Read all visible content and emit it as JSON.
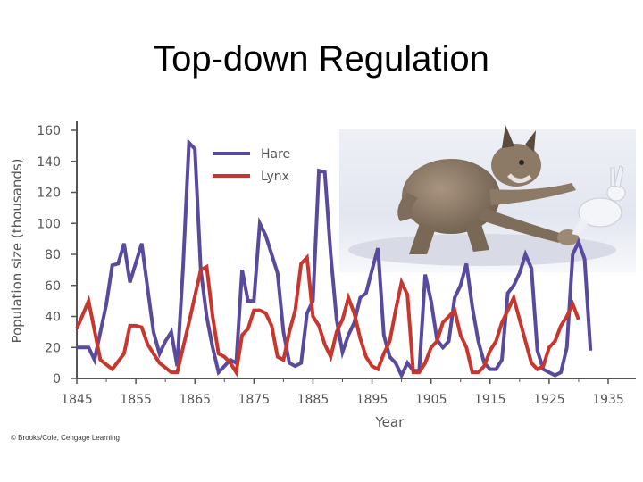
{
  "slide": {
    "title": "Top-down Regulation",
    "credit": "© Brooks/Cole, Cengage Learning"
  },
  "illustration": {
    "subject": "lynx chasing a snowshoe hare in snow"
  },
  "chart_data": {
    "type": "line",
    "xlabel": "Year",
    "ylabel": "Population size (thousands)",
    "xlim": [
      1845,
      1935
    ],
    "ylim": [
      0,
      160
    ],
    "x_ticks": [
      1845,
      1855,
      1865,
      1875,
      1885,
      1895,
      1905,
      1915,
      1925,
      1935
    ],
    "y_ticks": [
      0,
      20,
      40,
      60,
      80,
      100,
      120,
      140,
      160
    ],
    "legend_position": "top-center",
    "series": [
      {
        "name": "Hare",
        "color": "#5a4a9e",
        "points": [
          [
            1845,
            20
          ],
          [
            1847,
            20
          ],
          [
            1848,
            12
          ],
          [
            1850,
            48
          ],
          [
            1851,
            73
          ],
          [
            1852,
            74
          ],
          [
            1853,
            87
          ],
          [
            1854,
            62
          ],
          [
            1856,
            87
          ],
          [
            1857,
            58
          ],
          [
            1858,
            30
          ],
          [
            1859,
            16
          ],
          [
            1860,
            24
          ],
          [
            1861,
            30
          ],
          [
            1862,
            8
          ],
          [
            1863,
            72
          ],
          [
            1864,
            152
          ],
          [
            1865,
            148
          ],
          [
            1866,
            70
          ],
          [
            1867,
            40
          ],
          [
            1868,
            20
          ],
          [
            1869,
            4
          ],
          [
            1870,
            8
          ],
          [
            1871,
            12
          ],
          [
            1872,
            10
          ],
          [
            1873,
            70
          ],
          [
            1874,
            50
          ],
          [
            1875,
            50
          ],
          [
            1876,
            100
          ],
          [
            1877,
            92
          ],
          [
            1878,
            80
          ],
          [
            1879,
            68
          ],
          [
            1880,
            30
          ],
          [
            1881,
            10
          ],
          [
            1882,
            8
          ],
          [
            1883,
            10
          ],
          [
            1884,
            42
          ],
          [
            1885,
            50
          ],
          [
            1886,
            134
          ],
          [
            1887,
            133
          ],
          [
            1888,
            80
          ],
          [
            1889,
            38
          ],
          [
            1890,
            17
          ],
          [
            1891,
            28
          ],
          [
            1892,
            36
          ],
          [
            1893,
            52
          ],
          [
            1894,
            55
          ],
          [
            1895,
            70
          ],
          [
            1896,
            84
          ],
          [
            1897,
            28
          ],
          [
            1898,
            14
          ],
          [
            1899,
            10
          ],
          [
            1900,
            2
          ],
          [
            1901,
            10
          ],
          [
            1902,
            5
          ],
          [
            1903,
            5
          ],
          [
            1904,
            67
          ],
          [
            1905,
            50
          ],
          [
            1906,
            25
          ],
          [
            1907,
            20
          ],
          [
            1908,
            24
          ],
          [
            1909,
            52
          ],
          [
            1910,
            60
          ],
          [
            1911,
            74
          ],
          [
            1912,
            46
          ],
          [
            1913,
            24
          ],
          [
            1914,
            10
          ],
          [
            1915,
            6
          ],
          [
            1916,
            6
          ],
          [
            1917,
            12
          ],
          [
            1918,
            55
          ],
          [
            1919,
            60
          ],
          [
            1920,
            68
          ],
          [
            1921,
            80
          ],
          [
            1922,
            71
          ],
          [
            1923,
            18
          ],
          [
            1924,
            6
          ],
          [
            1925,
            4
          ],
          [
            1926,
            2
          ],
          [
            1927,
            4
          ],
          [
            1928,
            20
          ],
          [
            1929,
            80
          ],
          [
            1930,
            88
          ],
          [
            1931,
            77
          ],
          [
            1932,
            18
          ]
        ]
      },
      {
        "name": "Lynx",
        "color": "#c8362e",
        "points": [
          [
            1845,
            32
          ],
          [
            1847,
            50
          ],
          [
            1849,
            12
          ],
          [
            1851,
            6
          ],
          [
            1853,
            16
          ],
          [
            1854,
            34
          ],
          [
            1855,
            34
          ],
          [
            1856,
            33
          ],
          [
            1857,
            22
          ],
          [
            1859,
            10
          ],
          [
            1861,
            4
          ],
          [
            1862,
            4
          ],
          [
            1864,
            36
          ],
          [
            1866,
            70
          ],
          [
            1867,
            72
          ],
          [
            1868,
            40
          ],
          [
            1869,
            16
          ],
          [
            1870,
            14
          ],
          [
            1871,
            10
          ],
          [
            1872,
            4
          ],
          [
            1873,
            28
          ],
          [
            1874,
            32
          ],
          [
            1875,
            44
          ],
          [
            1876,
            44
          ],
          [
            1877,
            42
          ],
          [
            1878,
            34
          ],
          [
            1879,
            14
          ],
          [
            1880,
            12
          ],
          [
            1881,
            30
          ],
          [
            1882,
            44
          ],
          [
            1883,
            74
          ],
          [
            1884,
            78
          ],
          [
            1885,
            40
          ],
          [
            1886,
            34
          ],
          [
            1887,
            22
          ],
          [
            1888,
            14
          ],
          [
            1889,
            30
          ],
          [
            1890,
            38
          ],
          [
            1891,
            52
          ],
          [
            1892,
            42
          ],
          [
            1893,
            26
          ],
          [
            1894,
            14
          ],
          [
            1895,
            8
          ],
          [
            1896,
            6
          ],
          [
            1897,
            16
          ],
          [
            1898,
            24
          ],
          [
            1899,
            44
          ],
          [
            1900,
            62
          ],
          [
            1901,
            54
          ],
          [
            1902,
            4
          ],
          [
            1903,
            4
          ],
          [
            1904,
            10
          ],
          [
            1905,
            20
          ],
          [
            1906,
            24
          ],
          [
            1907,
            36
          ],
          [
            1908,
            40
          ],
          [
            1909,
            44
          ],
          [
            1910,
            28
          ],
          [
            1911,
            20
          ],
          [
            1912,
            4
          ],
          [
            1913,
            4
          ],
          [
            1914,
            8
          ],
          [
            1915,
            18
          ],
          [
            1916,
            24
          ],
          [
            1917,
            36
          ],
          [
            1918,
            44
          ],
          [
            1919,
            52
          ],
          [
            1920,
            38
          ],
          [
            1921,
            24
          ],
          [
            1922,
            10
          ],
          [
            1923,
            6
          ],
          [
            1924,
            8
          ],
          [
            1925,
            20
          ],
          [
            1926,
            24
          ],
          [
            1927,
            34
          ],
          [
            1928,
            40
          ],
          [
            1929,
            48
          ],
          [
            1930,
            38
          ]
        ]
      }
    ]
  }
}
